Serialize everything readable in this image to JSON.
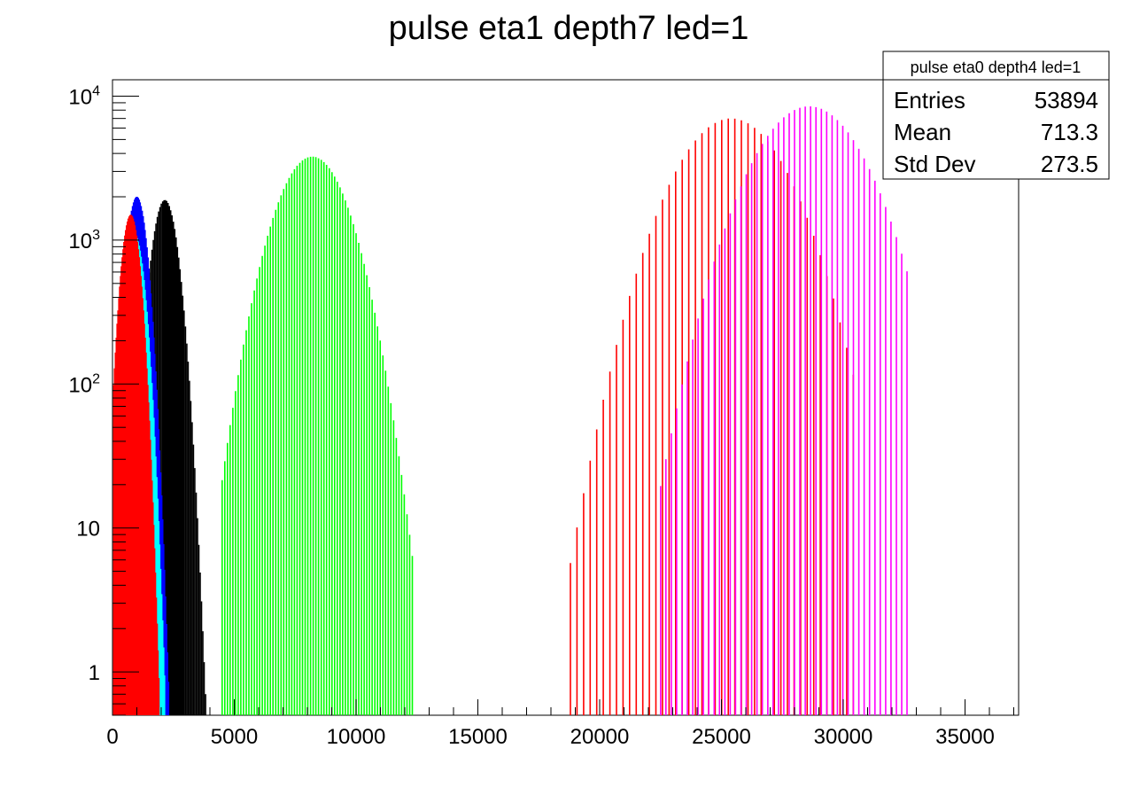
{
  "chart_data": {
    "type": "bar",
    "title": "pulse eta1 depth7 led=1",
    "xlabel": "",
    "ylabel": "",
    "xlim": [
      0,
      37200
    ],
    "ylim": [
      0.5,
      13000
    ],
    "y_scale": "log",
    "grid": false,
    "legend": "none",
    "x_ticks": [
      0,
      5000,
      10000,
      15000,
      20000,
      25000,
      30000,
      35000
    ],
    "x_tick_labels": [
      "0",
      "5000",
      "10000",
      "15000",
      "20000",
      "25000",
      "30000",
      "35000"
    ],
    "y_ticks": [
      1,
      10,
      100,
      1000,
      10000
    ],
    "y_tick_labels": [
      {
        "base": "1",
        "exp": ""
      },
      {
        "base": "10",
        "exp": ""
      },
      {
        "base": "10",
        "exp": "2"
      },
      {
        "base": "10",
        "exp": "3"
      },
      {
        "base": "10",
        "exp": "4"
      }
    ],
    "series": [
      {
        "color": "#000000",
        "mu": 2150,
        "sigma": 420,
        "peak": 1900,
        "bin": 55,
        "xmin": 300,
        "xmax": 4300
      },
      {
        "color": "#00ff00",
        "mu": 8200,
        "sigma": 1150,
        "peak": 3800,
        "bin": 110,
        "xmin": 4500,
        "xmax": 12400
      },
      {
        "color": "#0000ff",
        "mu": 1000,
        "sigma": 330,
        "peak": 2000,
        "bin": 40,
        "xmin": 100,
        "xmax": 2600
      },
      {
        "color": "#ff0000",
        "mu": 25400,
        "sigma": 1750,
        "peak": 7000,
        "bin": 270,
        "xmin": 18800,
        "xmax": 30500
      },
      {
        "color": "#ff00ff",
        "mu": 28600,
        "sigma": 1750,
        "peak": 8500,
        "bin": 220,
        "xmin": 22500,
        "xmax": 32800
      },
      {
        "color": "#00ffff",
        "mu": 900,
        "sigma": 330,
        "peak": 1100,
        "bin": 40,
        "xmin": 100,
        "xmax": 2500
      },
      {
        "color": "#ff0000",
        "mu": 750,
        "sigma": 300,
        "peak": 1500,
        "bin": 35,
        "xmin": 50,
        "xmax": 2300
      }
    ],
    "stats_box": {
      "title": "pulse eta0 depth4 led=1",
      "rows": [
        {
          "label": "Entries",
          "value": "53894"
        },
        {
          "label": "Mean",
          "value": "713.3"
        },
        {
          "label": "Std Dev",
          "value": "273.5"
        }
      ]
    }
  }
}
